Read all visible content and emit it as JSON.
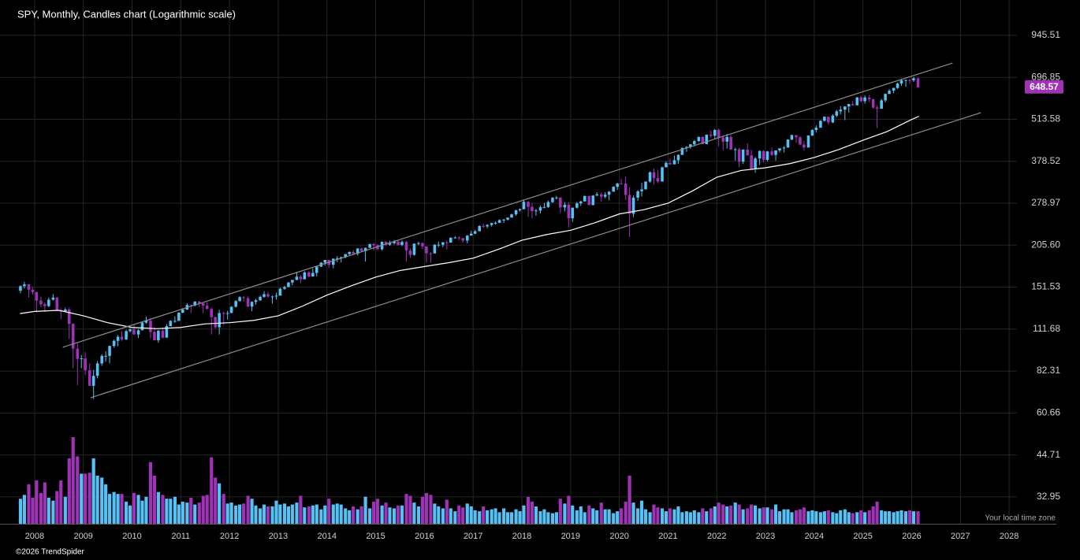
{
  "chart_data": {
    "type": "candlestick",
    "title": "SPY, Monthly, Candles chart (Logarithmic scale)",
    "log_scale": true,
    "grid": true,
    "up_color": "#56c1f5",
    "down_color": "#a032b8",
    "xlim": [
      2007.29,
      2028.16
    ],
    "xticks": [
      2008,
      2009,
      2010,
      2011,
      2012,
      2013,
      2014,
      2015,
      2016,
      2017,
      2018,
      2019,
      2020,
      2021,
      2022,
      2023,
      2024,
      2025,
      2026,
      2027,
      2028
    ],
    "ylim": [
      27.1,
      1223
    ],
    "yticks": [
      945.51,
      696.85,
      513.58,
      378.52,
      278.97,
      {
        "value": 205.6,
        "label": "205.60"
      },
      151.53,
      111.68,
      82.31,
      60.66,
      44.71,
      32.95
    ],
    "x": [
      2007.71,
      2007.79,
      2007.88,
      2007.96,
      2008.04,
      2008.13,
      2008.21,
      2008.29,
      2008.38,
      2008.46,
      2008.54,
      2008.63,
      2008.71,
      2008.79,
      2008.88,
      2008.96,
      2009.04,
      2009.13,
      2009.21,
      2009.29,
      2009.38,
      2009.46,
      2009.54,
      2009.63,
      2009.71,
      2009.79,
      2009.88,
      2009.96,
      2010.04,
      2010.13,
      2010.21,
      2010.29,
      2010.38,
      2010.46,
      2010.54,
      2010.63,
      2010.71,
      2010.79,
      2010.88,
      2010.96,
      2011.04,
      2011.13,
      2011.21,
      2011.29,
      2011.38,
      2011.46,
      2011.54,
      2011.63,
      2011.71,
      2011.79,
      2011.88,
      2011.96,
      2012.04,
      2012.13,
      2012.21,
      2012.29,
      2012.38,
      2012.46,
      2012.54,
      2012.63,
      2012.71,
      2012.79,
      2012.88,
      2012.96,
      2013.04,
      2013.13,
      2013.21,
      2013.29,
      2013.38,
      2013.46,
      2013.54,
      2013.63,
      2013.71,
      2013.79,
      2013.88,
      2013.96,
      2014.04,
      2014.13,
      2014.21,
      2014.29,
      2014.38,
      2014.46,
      2014.54,
      2014.63,
      2014.71,
      2014.79,
      2014.88,
      2014.96,
      2015.04,
      2015.13,
      2015.21,
      2015.29,
      2015.38,
      2015.46,
      2015.54,
      2015.63,
      2015.71,
      2015.79,
      2015.88,
      2015.96,
      2016.04,
      2016.13,
      2016.21,
      2016.29,
      2016.38,
      2016.46,
      2016.54,
      2016.63,
      2016.71,
      2016.79,
      2016.88,
      2016.96,
      2017.04,
      2017.13,
      2017.21,
      2017.29,
      2017.38,
      2017.46,
      2017.54,
      2017.63,
      2017.71,
      2017.79,
      2017.88,
      2017.96,
      2018.04,
      2018.13,
      2018.21,
      2018.29,
      2018.38,
      2018.46,
      2018.54,
      2018.63,
      2018.71,
      2018.79,
      2018.88,
      2018.96,
      2019.04,
      2019.13,
      2019.21,
      2019.29,
      2019.38,
      2019.46,
      2019.54,
      2019.63,
      2019.71,
      2019.79,
      2019.88,
      2019.96,
      2020.04,
      2020.13,
      2020.21,
      2020.29,
      2020.38,
      2020.46,
      2020.54,
      2020.63,
      2020.71,
      2020.79,
      2020.88,
      2020.96,
      2021.04,
      2021.13,
      2021.21,
      2021.29,
      2021.38,
      2021.46,
      2021.54,
      2021.63,
      2021.71,
      2021.79,
      2021.88,
      2021.96,
      2022.04,
      2022.13,
      2022.21,
      2022.29,
      2022.38,
      2022.46,
      2022.54,
      2022.63,
      2022.71,
      2022.79,
      2022.88,
      2022.96,
      2023.04,
      2023.13,
      2023.21,
      2023.29,
      2023.38,
      2023.46,
      2023.54,
      2023.63,
      2023.71,
      2023.79,
      2023.88,
      2023.96,
      2024.04,
      2024.13,
      2024.21,
      2024.29,
      2024.38,
      2024.46,
      2024.54,
      2024.63,
      2024.71,
      2024.79,
      2024.88,
      2024.96,
      2025.04,
      2025.13,
      2025.21,
      2025.29,
      2025.38,
      2025.46,
      2025.54,
      2025.63,
      2025.71,
      2025.79,
      2025.88,
      2025.96,
      2026.04,
      2026.13
    ],
    "open": [
      147.6,
      152.6,
      154.6,
      148.7,
      146.2,
      137.4,
      133.8,
      132.0,
      138.3,
      140.4,
      128.0,
      126.8,
      128.8,
      116.0,
      96.8,
      89.9,
      90.2,
      82.8,
      73.9,
      79.5,
      87.0,
      91.9,
      91.9,
      98.8,
      102.5,
      105.6,
      103.6,
      110.0,
      111.4,
      107.4,
      110.7,
      117.0,
      118.8,
      109.4,
      102.9,
      110.3,
      104.9,
      114.1,
      118.5,
      118.5,
      125.8,
      128.7,
      133.1,
      132.5,
      136.4,
      134.9,
      132.4,
      129.3,
      121.9,
      113.2,
      125.5,
      124.9,
      125.5,
      131.3,
      137.0,
      140.8,
      139.9,
      131.5,
      136.1,
      137.7,
      141.2,
      143.9,
      141.4,
      141.5,
      142.4,
      149.7,
      151.6,
      156.7,
      159.7,
      163.5,
      160.4,
      168.7,
      163.7,
      168.0,
      175.8,
      181.0,
      184.7,
      178.2,
      186.3,
      187.0,
      188.3,
      192.7,
      195.7,
      193.1,
      200.7,
      197.0,
      201.7,
      207.2,
      205.5,
      199.5,
      210.7,
      206.4,
      208.5,
      211.1,
      205.9,
      210.5,
      197.7,
      191.6,
      207.9,
      208.7,
      203.9,
      193.7,
      193.6,
      206.3,
      206.3,
      209.8,
      209.5,
      217.1,
      217.4,
      216.3,
      212.6,
      220.4,
      223.5,
      227.5,
      236.5,
      235.7,
      238.1,
      241.4,
      241.8,
      246.8,
      247.5,
      251.2,
      257.2,
      265.0,
      266.9,
      281.9,
      271.7,
      263.2,
      264.5,
      270.9,
      271.3,
      281.3,
      290.3,
      290.7,
      270.6,
      275.7,
      249.9,
      270.0,
      278.7,
      282.5,
      294.0,
      275.3,
      294.8,
      297.4,
      292.5,
      296.8,
      303.3,
      314.3,
      321.9,
      321.7,
      296.3,
      258.4,
      290.5,
      304.3,
      308.4,
      326.5,
      349.3,
      334.9,
      326.5,
      362.1,
      373.9,
      370.1,
      381.4,
      396.3,
      417.3,
      420.0,
      428.1,
      438.5,
      451.6,
      429.1,
      459.3,
      455.6,
      475.0,
      449.9,
      436.6,
      451.6,
      412.0,
      412.9,
      377.3,
      412.0,
      395.2,
      357.2,
      386.2,
      407.7,
      382.4,
      406.5,
      396.3,
      409.4,
      415.9,
      418.0,
      443.3,
      457.8,
      450.4,
      427.5,
      418.2,
      456.4,
      475.3,
      482.9,
      508.1,
      523.1,
      502.0,
      527.4,
      544.2,
      550.8,
      563.7,
      573.8,
      568.6,
      602.6,
      586.1,
      601.8,
      594.2,
      559.4,
      554.5,
      589.4,
      617.9,
      632.1,
      645.1,
      666.2,
      682.1,
      683.4,
      681.9,
      692.0
    ],
    "high": [
      153.5,
      157.5,
      155.0,
      151.0,
      146.5,
      141.5,
      135.5,
      140.5,
      144.0,
      141.0,
      130.0,
      130.5,
      130.5,
      116.5,
      101.0,
      92.5,
      94.5,
      87.0,
      83.0,
      88.5,
      93.0,
      95.0,
      99.0,
      103.5,
      107.0,
      110.0,
      111.0,
      112.5,
      115.1,
      111.6,
      117.5,
      122.1,
      121.2,
      113.2,
      111.0,
      113.0,
      115.8,
      119.1,
      122.5,
      126.2,
      130.2,
      134.7,
      133.5,
      136.7,
      137.2,
      134.5,
      135.7,
      130.4,
      122.2,
      128.5,
      126.9,
      127.6,
      132.0,
      137.7,
      141.9,
      141.9,
      141.5,
      136.5,
      139.2,
      142.5,
      147.2,
      146.5,
      142.5,
      145.6,
      150.9,
      153.3,
      157.2,
      159.7,
      169.1,
      165.3,
      170.0,
      170.2,
      173.6,
      176.3,
      181.8,
      184.7,
      184.7,
      186.7,
      189.7,
      189.0,
      192.8,
      196.4,
      198.3,
      201.0,
      201.9,
      201.8,
      207.8,
      209.1,
      206.9,
      211.2,
      211.4,
      212.2,
      213.4,
      212.5,
      212.9,
      211.8,
      200.8,
      208.0,
      211.0,
      210.0,
      201.9,
      195.6,
      206.9,
      210.9,
      210.7,
      212.5,
      217.5,
      219.6,
      219.2,
      216.7,
      221.5,
      228.3,
      229.7,
      237.3,
      240.3,
      239.5,
      242.1,
      244.4,
      248.0,
      248.9,
      251.3,
      258.5,
      266.0,
      268.6,
      286.6,
      283.1,
      278.9,
      267.9,
      273.9,
      279.5,
      284.4,
      291.7,
      293.9,
      291.4,
      281.2,
      280.4,
      270.5,
      281.2,
      284.2,
      294.9,
      294.5,
      296.3,
      302.2,
      300.9,
      302.5,
      304.6,
      315.5,
      323.8,
      332.9,
      339.1,
      313.8,
      294.9,
      306.8,
      323.4,
      327.2,
      351.3,
      359.0,
      354.0,
      364.4,
      378.5,
      385.9,
      394.2,
      398.0,
      418.2,
      422.8,
      428.8,
      441.8,
      453.1,
      454.1,
      459.6,
      473.5,
      479.0,
      479.9,
      458.1,
      462.1,
      457.8,
      417.4,
      417.4,
      413.0,
      431.7,
      411.7,
      390.4,
      410.0,
      410.5,
      408.2,
      418.3,
      409.7,
      415.9,
      422.6,
      444.3,
      459.4,
      453.7,
      453.6,
      438.1,
      456.4,
      477.6,
      491.0,
      510.1,
      524.6,
      523.2,
      533.1,
      550.3,
      565.2,
      564.2,
      574.7,
      586.1,
      603.4,
      609.1,
      610.8,
      613.2,
      597.3,
      568.4,
      596.0,
      619.2,
      639.8,
      646.5,
      670.2,
      689.7,
      685.4,
      689.0,
      697.0,
      695.0
    ],
    "low": [
      145.0,
      150.0,
      140.5,
      143.5,
      126.0,
      131.0,
      126.5,
      131.0,
      137.5,
      127.5,
      120.0,
      126.5,
      104.0,
      84.0,
      74.3,
      84.0,
      80.0,
      74.0,
      67.1,
      78.0,
      85.5,
      88.0,
      87.0,
      97.5,
      98.5,
      102.5,
      103.0,
      109.0,
      107.2,
      104.6,
      110.5,
      116.1,
      104.4,
      102.9,
      101.1,
      104.3,
      104.9,
      114.0,
      117.0,
      118.7,
      125.3,
      128.3,
      125.3,
      131.8,
      131.2,
      125.3,
      129.0,
      107.4,
      112.0,
      107.4,
      115.1,
      119.6,
      126.4,
      130.8,
      136.4,
      136.5,
      131.0,
      127.1,
      133.4,
      136.9,
      140.3,
      140.6,
      134.5,
      138.4,
      145.8,
      148.7,
      151.6,
      153.6,
      159.3,
      155.7,
      160.8,
      163.0,
      163.7,
      163.7,
      175.4,
      177.3,
      174.3,
      173.7,
      181.9,
      181.3,
      187.0,
      191.6,
      192.4,
      190.8,
      196.3,
      182.4,
      201.3,
      197.9,
      198.6,
      197.9,
      204.1,
      204.8,
      206.6,
      205.3,
      204.1,
      182.4,
      187.4,
      190.5,
      205.6,
      199.8,
      181.0,
      181.1,
      193.5,
      202.8,
      202.8,
      199.0,
      208.9,
      215.6,
      213.0,
      209.5,
      208.4,
      220.3,
      222.7,
      227.3,
      232.5,
      232.5,
      235.4,
      238.6,
      241.7,
      241.9,
      245.6,
      251.2,
      254.6,
      262.6,
      267.4,
      252.9,
      250.0,
      254.7,
      259.1,
      268.5,
      269.6,
      279.2,
      286.7,
      259.9,
      263.0,
      233.8,
      243.7,
      268.3,
      273.7,
      284.2,
      275.0,
      274.6,
      294.3,
      282.2,
      288.9,
      284.8,
      304.7,
      307.1,
      320.4,
      285.5,
      218.3,
      252.3,
      283.7,
      292.7,
      309.1,
      323.9,
      319.8,
      322.6,
      326.8,
      362.0,
      368.3,
      370.1,
      371.9,
      398.2,
      405.4,
      414.7,
      421.9,
      435.0,
      428.8,
      428.0,
      448.9,
      445.9,
      420.8,
      410.6,
      415.1,
      411.2,
      380.5,
      362.2,
      371.0,
      395.0,
      357.0,
      348.1,
      368.8,
      374.8,
      377.8,
      393.6,
      380.7,
      403.8,
      403.7,
      418.0,
      441.0,
      433.0,
      425.0,
      409.2,
      418.6,
      454.3,
      466.4,
      483.8,
      504.9,
      493.9,
      499.6,
      522.6,
      532.4,
      510.3,
      539.4,
      567.9,
      568.4,
      580.9,
      575.4,
      582.4,
      555.2,
      481.8,
      555.0,
      581.1,
      616.8,
      620.6,
      640.5,
      655.6,
      650.9,
      664.0,
      674.0,
      645.0
    ],
    "close": [
      152.6,
      154.6,
      148.7,
      146.2,
      137.4,
      133.8,
      132.0,
      138.3,
      140.4,
      128.0,
      126.8,
      128.8,
      116.0,
      96.8,
      89.9,
      90.2,
      82.8,
      73.9,
      79.5,
      87.0,
      91.9,
      91.9,
      98.8,
      102.5,
      105.6,
      103.6,
      110.0,
      111.4,
      107.4,
      110.7,
      117.0,
      118.8,
      109.4,
      102.9,
      110.3,
      104.9,
      114.1,
      118.5,
      118.5,
      125.8,
      128.7,
      133.1,
      132.5,
      136.4,
      134.9,
      132.4,
      129.3,
      121.9,
      113.2,
      125.5,
      124.9,
      125.5,
      131.3,
      137.0,
      140.8,
      139.9,
      131.5,
      136.1,
      137.7,
      141.2,
      143.9,
      141.4,
      141.5,
      142.4,
      149.7,
      151.6,
      156.7,
      159.7,
      163.5,
      160.4,
      168.7,
      163.7,
      168.0,
      175.8,
      181.0,
      184.7,
      178.2,
      186.3,
      187.0,
      188.3,
      192.7,
      195.7,
      193.1,
      200.7,
      197.0,
      201.7,
      207.2,
      205.5,
      199.5,
      210.7,
      206.4,
      208.5,
      211.1,
      205.9,
      210.5,
      197.7,
      191.6,
      207.9,
      208.7,
      203.9,
      193.7,
      193.6,
      206.3,
      206.3,
      209.8,
      209.5,
      217.1,
      217.4,
      216.3,
      212.6,
      220.4,
      223.5,
      227.5,
      236.5,
      235.7,
      238.1,
      241.4,
      241.8,
      246.8,
      247.5,
      251.2,
      257.2,
      265.0,
      266.9,
      281.9,
      271.7,
      263.2,
      264.5,
      270.9,
      271.3,
      281.3,
      290.3,
      290.7,
      270.6,
      275.7,
      249.9,
      270.0,
      278.7,
      282.5,
      294.0,
      275.3,
      294.8,
      297.4,
      292.5,
      296.8,
      303.3,
      314.3,
      321.9,
      321.7,
      296.3,
      258.4,
      290.5,
      304.3,
      308.4,
      326.5,
      349.3,
      334.9,
      326.5,
      362.1,
      373.9,
      370.1,
      381.4,
      396.3,
      417.3,
      420.0,
      428.1,
      438.5,
      451.6,
      429.1,
      459.3,
      455.6,
      475.0,
      449.9,
      436.6,
      451.6,
      412.0,
      412.9,
      377.3,
      412.0,
      395.2,
      357.2,
      386.2,
      407.7,
      382.4,
      406.5,
      396.3,
      409.4,
      415.9,
      418.0,
      443.3,
      457.8,
      450.4,
      427.5,
      418.2,
      456.4,
      475.3,
      482.9,
      508.1,
      523.1,
      502.0,
      527.4,
      544.2,
      550.8,
      563.7,
      573.8,
      568.6,
      602.6,
      586.1,
      601.8,
      594.2,
      559.4,
      554.5,
      589.4,
      617.9,
      632.1,
      645.1,
      666.2,
      682.1,
      683.4,
      681.9,
      692.0,
      648.57
    ],
    "volume": [
      2.6,
      3.0,
      4.1,
      2.7,
      4.5,
      3.2,
      4.3,
      2.7,
      2.4,
      3.4,
      4.5,
      2.8,
      6.8,
      9.0,
      7.0,
      5.2,
      5.2,
      5.3,
      6.8,
      5.0,
      4.8,
      4.1,
      3.1,
      3.3,
      3.1,
      3.1,
      2.3,
      1.9,
      3.2,
      3.0,
      2.4,
      2.8,
      6.4,
      5.0,
      3.3,
      3.0,
      2.6,
      2.6,
      2.8,
      2.0,
      2.3,
      2.2,
      2.7,
      2.0,
      2.2,
      2.9,
      3.0,
      6.9,
      4.8,
      4.2,
      3.1,
      2.1,
      2.2,
      1.9,
      2.0,
      2.1,
      2.9,
      2.6,
      1.9,
      1.6,
      2.0,
      1.8,
      1.8,
      2.4,
      2.0,
      2.1,
      1.8,
      2.0,
      2.2,
      2.9,
      1.7,
      1.8,
      1.9,
      2.0,
      1.5,
      1.9,
      2.6,
      2.0,
      2.1,
      2.0,
      1.6,
      1.4,
      1.8,
      1.5,
      1.8,
      2.8,
      1.6,
      2.3,
      2.6,
      1.9,
      2.2,
      1.7,
      1.6,
      1.9,
      1.9,
      3.1,
      2.9,
      2.2,
      1.8,
      2.8,
      3.2,
      3.0,
      2.1,
      1.8,
      1.6,
      2.5,
      1.6,
      1.3,
      1.9,
      1.7,
      2.1,
      1.8,
      1.4,
      1.3,
      1.8,
      1.4,
      1.5,
      1.6,
      1.2,
      1.6,
      1.2,
      1.2,
      1.5,
      1.3,
      1.9,
      2.8,
      2.3,
      1.8,
      1.3,
      1.5,
      1.2,
      1.1,
      1.2,
      2.6,
      2.1,
      2.9,
      1.9,
      1.4,
      1.8,
      1.2,
      1.9,
      1.6,
      1.4,
      2.2,
      1.5,
      1.5,
      1.1,
      1.3,
      1.6,
      2.3,
      5.0,
      2.2,
      1.6,
      2.4,
      1.5,
      1.2,
      2.0,
      1.7,
      1.6,
      1.3,
      1.6,
      1.5,
      1.8,
      1.2,
      1.3,
      1.2,
      1.4,
      1.2,
      1.6,
      1.3,
      1.6,
      1.8,
      2.2,
      2.0,
      1.8,
      1.9,
      2.2,
      2.0,
      1.5,
      1.6,
      2.0,
      1.9,
      1.6,
      1.7,
      1.7,
      1.5,
      2.0,
      1.3,
      1.5,
      1.5,
      1.2,
      1.4,
      1.5,
      1.7,
      1.3,
      1.4,
      1.3,
      1.2,
      1.3,
      1.4,
      1.2,
      1.1,
      1.4,
      1.5,
      1.2,
      1.1,
      1.2,
      1.4,
      1.2,
      1.4,
      1.8,
      2.3,
      1.4,
      1.3,
      1.3,
      1.2,
      1.3,
      1.4,
      1.3,
      1.4,
      1.3,
      1.3
    ],
    "ma": {
      "color": "#ffffff",
      "x": [
        2007.7,
        2008.0,
        2008.5,
        2009.0,
        2009.5,
        2010.0,
        2010.5,
        2011.0,
        2011.5,
        2012.0,
        2012.5,
        2013.0,
        2013.5,
        2014.0,
        2014.5,
        2015.0,
        2015.5,
        2016.0,
        2016.5,
        2017.0,
        2017.5,
        2018.0,
        2018.5,
        2019.0,
        2019.5,
        2020.0,
        2020.5,
        2021.0,
        2021.5,
        2022.0,
        2022.5,
        2023.0,
        2023.5,
        2024.0,
        2024.5,
        2025.0,
        2025.5,
        2026.0,
        2026.15
      ],
      "values": [
        125,
        127,
        128,
        123,
        117,
        113,
        112,
        113,
        116,
        117,
        119,
        123,
        132,
        143,
        153,
        163,
        171,
        176,
        181,
        187,
        199,
        213,
        222,
        229,
        242,
        258,
        266,
        279,
        305,
        337,
        354,
        361,
        372,
        389,
        412,
        441,
        470,
        513,
        525
      ]
    },
    "trendlines": [
      {
        "color": "#8c8c8c",
        "x": [
          2008.58,
          2026.84
        ],
        "y": [
          97.9,
          773
        ]
      },
      {
        "color": "#8c8c8c",
        "x": [
          2009.15,
          2027.42
        ],
        "y": [
          67.8,
          539
        ]
      }
    ]
  },
  "timezone_note": "Your local time zone",
  "copyright": "©2026 TrendSpider"
}
